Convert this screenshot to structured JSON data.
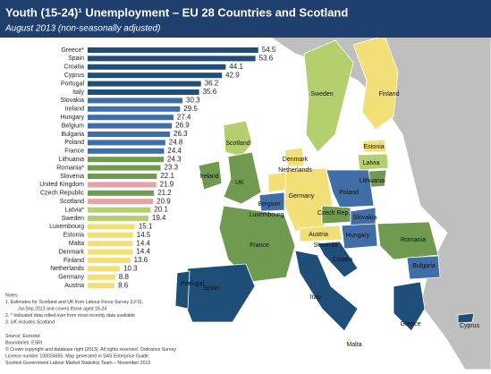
{
  "chart_data": {
    "type": "bar",
    "orientation": "horizontal",
    "title": "Youth (15-24)¹ Unemployment – EU 28 Countries and Scotland",
    "subtitle": "August 2013 (non-seasonally adjusted)",
    "categories": [
      "Greece*",
      "Spain",
      "Croatia",
      "Cyprus",
      "Portugal",
      "Italy",
      "Slovakia",
      "Ireland",
      "Hungary",
      "Belgium",
      "Bulgaria",
      "Poland",
      "France",
      "Lithuania",
      "Romania*",
      "Slovenia",
      "United Kingdom",
      "Czech Republic",
      "Scotland",
      "Latvia*",
      "Sweden",
      "Luxembourg",
      "Estonia",
      "Malta",
      "Denmark",
      "Finland",
      "Netherlands",
      "Germany",
      "Austria"
    ],
    "values": [
      54.5,
      53.6,
      44.1,
      42.9,
      36.2,
      35.6,
      30.3,
      29.5,
      27.4,
      26.9,
      26.3,
      24.8,
      24.4,
      24.3,
      23.3,
      22.1,
      21.9,
      21.2,
      20.9,
      20.1,
      19.4,
      15.1,
      14.5,
      14.4,
      14.4,
      13.6,
      10.3,
      8.8,
      8.6
    ],
    "colors": [
      "#1f4e79",
      "#1f4e79",
      "#1f4e79",
      "#1f4e79",
      "#1f4e79",
      "#1f4e79",
      "#3f6ea8",
      "#3f6ea8",
      "#3f6ea8",
      "#3f6ea8",
      "#3f6ea8",
      "#3f6ea8",
      "#3f6ea8",
      "#6f9a50",
      "#6f9a50",
      "#6f9a50",
      "#e7a3a3",
      "#6f9a50",
      "#e7a3a3",
      "#b4cf6e",
      "#b4cf6e",
      "#f2df78",
      "#f2df78",
      "#f2df78",
      "#f2df78",
      "#f2df78",
      "#f2df78",
      "#f2df78",
      "#f2df78"
    ],
    "notes": [
      "Notes",
      "1.      Estimates for Scotland and UK from Labour Force Survey (LFS),",
      "Jul-Sep 2013 and covers those aged 16-24",
      "2. * Indicated data rolled over from most recently data available",
      "3. UK includes Scotland",
      "Source: Eurostat",
      "Boundaries: ESRI",
      "© Crown copyright and database right (2013). All rights reserved. Ordnance Survey",
      "Licence number 100024655. Map generated in SAS Enterprise Guide.",
      "Scottish Government Labour Market Statistics Team – November 2013"
    ]
  },
  "map": {
    "labels": [
      "Sweden",
      "Finland",
      "Estonia",
      "Latvia",
      "Lithuania",
      "Scotland",
      "Denmark",
      "Netherlands",
      "Ireland",
      "UK",
      "Poland",
      "Germany",
      "Belgium",
      "Luxembourg",
      "Czech Rep.",
      "Slovakia",
      "Austria",
      "Hungary",
      "Romania",
      "Slovenia",
      "France",
      "Croatia",
      "Bulgaria",
      "Portugal",
      "Spain",
      "Italy",
      "Greece",
      "Cyprus",
      "Malta"
    ]
  }
}
